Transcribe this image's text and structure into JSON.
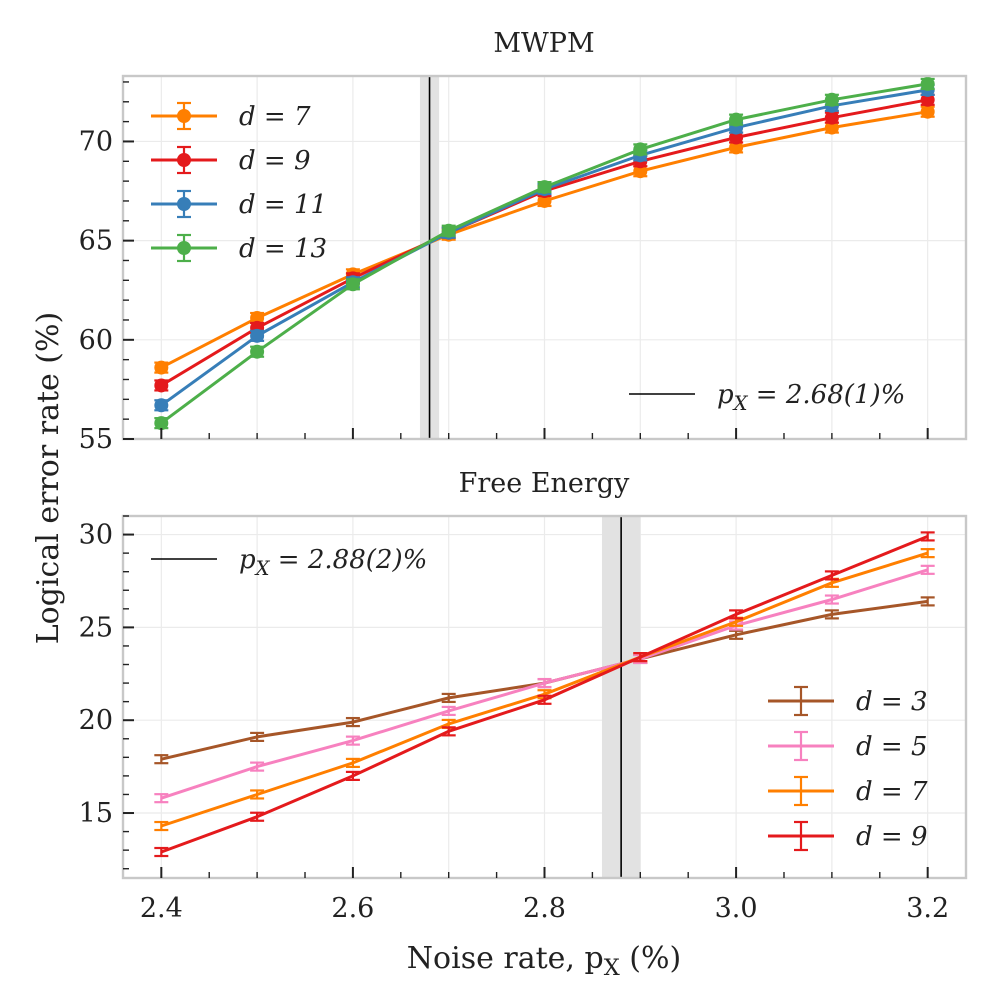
{
  "ylabel": "Logical error rate (%)",
  "xlabel": "Noise rate, p_X (%)",
  "chart_data": [
    {
      "type": "line",
      "title": "MWPM",
      "x": [
        2.4,
        2.5,
        2.6,
        2.7,
        2.8,
        2.9,
        3.0,
        3.1,
        3.2
      ],
      "xlim": [
        2.36,
        3.24
      ],
      "ylim": [
        55,
        73.3
      ],
      "xticks": [
        "2.4",
        "2.6",
        "2.8",
        "3.0",
        "3.2"
      ],
      "yticks": [
        55,
        60,
        65,
        70
      ],
      "threshold": {
        "value": 2.68,
        "band": [
          2.67,
          2.69
        ],
        "label": "p_X = 2.68(1)%"
      },
      "series": [
        {
          "name": "d = 7",
          "color": "#ff7f00",
          "values": [
            58.6,
            61.1,
            63.3,
            65.3,
            67.0,
            68.5,
            69.7,
            70.7,
            71.5
          ]
        },
        {
          "name": "d = 9",
          "color": "#e41a1c",
          "values": [
            57.7,
            60.6,
            63.1,
            65.4,
            67.5,
            69.0,
            70.2,
            71.2,
            72.1
          ]
        },
        {
          "name": "d = 11",
          "color": "#377eb8",
          "values": [
            56.7,
            60.2,
            62.9,
            65.4,
            67.6,
            69.3,
            70.7,
            71.8,
            72.6
          ]
        },
        {
          "name": "d = 13",
          "color": "#4daf4a",
          "values": [
            55.8,
            59.4,
            62.8,
            65.5,
            67.7,
            69.6,
            71.1,
            72.1,
            72.9
          ]
        }
      ],
      "legend": "top-left"
    },
    {
      "type": "line",
      "title": "Free Energy",
      "x": [
        2.4,
        2.5,
        2.6,
        2.7,
        2.8,
        2.9,
        3.0,
        3.1,
        3.2
      ],
      "xlim": [
        2.36,
        3.24
      ],
      "ylim": [
        11.5,
        31.0
      ],
      "xticks": [
        "2.4",
        "2.6",
        "2.8",
        "3.0",
        "3.2"
      ],
      "yticks": [
        15,
        20,
        25,
        30
      ],
      "threshold": {
        "value": 2.88,
        "band": [
          2.86,
          2.9
        ],
        "label": "p_X = 2.88(2)%"
      },
      "series": [
        {
          "name": "d = 3",
          "color": "#a65628",
          "values": [
            17.9,
            19.1,
            19.9,
            21.2,
            22.0,
            23.3,
            24.6,
            25.7,
            26.4
          ]
        },
        {
          "name": "d = 5",
          "color": "#f781bf",
          "values": [
            15.8,
            17.5,
            18.9,
            20.5,
            22.0,
            23.3,
            25.1,
            26.5,
            28.1
          ]
        },
        {
          "name": "d = 7",
          "color": "#ff7f00",
          "values": [
            14.3,
            16.0,
            17.7,
            19.8,
            21.4,
            23.4,
            25.3,
            27.4,
            29.0
          ]
        },
        {
          "name": "d = 9",
          "color": "#e41a1c",
          "values": [
            12.9,
            14.8,
            17.0,
            19.4,
            21.1,
            23.4,
            25.7,
            27.8,
            29.9
          ]
        }
      ],
      "legend": "bottom-right"
    }
  ]
}
